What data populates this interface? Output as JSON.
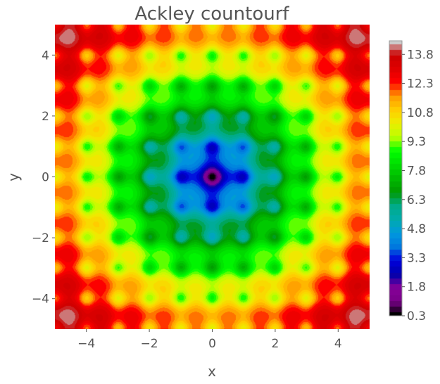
{
  "chart_data": {
    "type": "heatmap",
    "title": "Ackley countourf",
    "xlabel": "x",
    "ylabel": "y",
    "xlim": [
      -5,
      5
    ],
    "ylim": [
      -5,
      5
    ],
    "x_ticks": [
      -4,
      -2,
      0,
      2,
      4
    ],
    "x_tick_labels": [
      "−4",
      "−2",
      "0",
      "2",
      "4"
    ],
    "y_ticks": [
      -4,
      -2,
      0,
      2,
      4
    ],
    "y_tick_labels": [
      "−4",
      "−2",
      "0",
      "2",
      "4"
    ],
    "function": "ackley",
    "colormap": "nipy_spectral",
    "colorbar": {
      "range": [
        0.3,
        14.5
      ],
      "ticks": [
        0.3,
        1.8,
        3.3,
        4.8,
        6.3,
        7.8,
        9.3,
        10.8,
        12.3,
        13.8
      ],
      "tick_labels": [
        "0.3",
        "1.8",
        "3.3",
        "4.8",
        "6.3",
        "7.8",
        "9.3",
        "10.8",
        "12.3",
        "13.8"
      ],
      "placement": "right"
    },
    "grid": false
  }
}
